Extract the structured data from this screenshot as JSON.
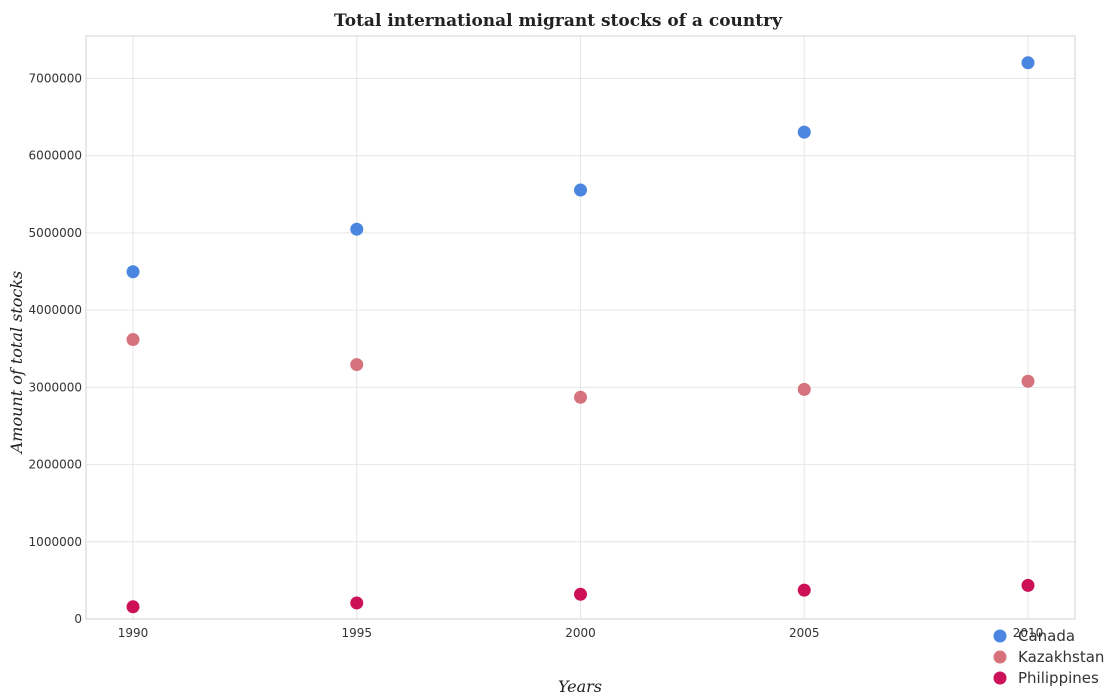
{
  "chart_data": {
    "type": "scatter",
    "title": "Total international migrant stocks of a country",
    "xlabel": "Years",
    "ylabel": "Amount of total stocks",
    "x": [
      "1990",
      "1995",
      "2000",
      "2005",
      "2010"
    ],
    "ylim": [
      0,
      7550000
    ],
    "yticks": [
      0,
      1000000,
      2000000,
      3000000,
      4000000,
      5000000,
      6000000,
      7000000
    ],
    "ytick_labels": [
      "0",
      "1000000",
      "2000000",
      "3000000",
      "4000000",
      "5000000",
      "6000000",
      "7000000"
    ],
    "grid": true,
    "legend_position": "bottom-right",
    "series": [
      {
        "name": "Canada",
        "color": "#4a86e0",
        "values": [
          4497000,
          5048000,
          5555000,
          6305000,
          7203000
        ]
      },
      {
        "name": "Kazakhstan",
        "color": "#d5727c",
        "values": [
          3619000,
          3295000,
          2871000,
          2974000,
          3079000
        ]
      },
      {
        "name": "Philippines",
        "color": "#cc1158",
        "values": [
          158000,
          208000,
          320000,
          374000,
          435000
        ]
      }
    ]
  }
}
